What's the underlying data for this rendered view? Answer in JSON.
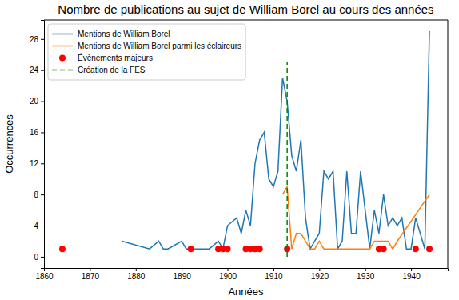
{
  "chart_data": {
    "type": "line",
    "title": "Nombre de publications au sujet de William Borel au cours des années",
    "x_label": "Années",
    "y_label": "Occurrences",
    "xlim": [
      1860,
      1948
    ],
    "ylim": [
      -1.45,
      30.45
    ],
    "xticks": [
      1860,
      1870,
      1880,
      1890,
      1900,
      1910,
      1920,
      1930,
      1940
    ],
    "yticks": [
      0,
      4,
      8,
      12,
      16,
      20,
      24,
      28
    ],
    "grid": false,
    "legend": "upper left",
    "series": [
      {
        "name": "Mentions de William Borel",
        "color": "#1f77b4",
        "type": "line",
        "x": [
          1877,
          1883,
          1885,
          1886,
          1887,
          1890,
          1891,
          1892,
          1893,
          1895,
          1896,
          1898,
          1899,
          1900,
          1902,
          1903,
          1904,
          1905,
          1906,
          1907,
          1908,
          1909,
          1910,
          1911,
          1912,
          1913,
          1914,
          1915,
          1916,
          1917,
          1918,
          1919,
          1920,
          1921,
          1922,
          1923,
          1924,
          1925,
          1926,
          1927,
          1928,
          1929,
          1930,
          1931,
          1932,
          1933,
          1934,
          1935,
          1936,
          1937,
          1938,
          1939,
          1940,
          1941,
          1943,
          1944
        ],
        "values": [
          2,
          1,
          2,
          1,
          1,
          2,
          1,
          1,
          1,
          1,
          1,
          2,
          1,
          4,
          5,
          3,
          6,
          4,
          12,
          15,
          16,
          10,
          9,
          11,
          23,
          20,
          13,
          11,
          15,
          5,
          1,
          2,
          3,
          11,
          10,
          11,
          1,
          2,
          11,
          3,
          3,
          11,
          6,
          1,
          6,
          3,
          8,
          4,
          5,
          4,
          5,
          1,
          1,
          5,
          1,
          29
        ]
      },
      {
        "name": "Mentions de William Borel parmi les éclaireurs",
        "color": "#ff7f0e",
        "type": "line",
        "x": [
          1912,
          1913,
          1914,
          1915,
          1916,
          1917,
          1918,
          1919,
          1920,
          1921,
          1922,
          1923,
          1924,
          1925,
          1926,
          1927,
          1928,
          1929,
          1930,
          1931,
          1932,
          1933,
          1934,
          1935,
          1936,
          1937,
          1944
        ],
        "values": [
          8,
          9,
          1,
          3,
          3,
          2,
          1,
          1,
          2,
          1,
          1,
          1,
          1,
          1,
          1,
          1,
          1,
          1,
          1,
          1,
          2,
          2,
          2,
          2,
          1,
          2,
          8
        ]
      },
      {
        "name": "Évènements majeurs",
        "color": "red",
        "type": "scatter",
        "marker": "circle",
        "x": [
          1864,
          1892,
          1898,
          1899,
          1900,
          1904,
          1905,
          1906,
          1907,
          1913,
          1933,
          1934,
          1941,
          1944
        ],
        "values": [
          1,
          1,
          1,
          1,
          1,
          1,
          1,
          1,
          1,
          1,
          1,
          1,
          1,
          1
        ]
      },
      {
        "name": "Création de la FES",
        "color": "green",
        "type": "line",
        "line_style": "dashed",
        "x": [
          1913,
          1913
        ],
        "values": [
          0,
          25
        ]
      }
    ]
  }
}
